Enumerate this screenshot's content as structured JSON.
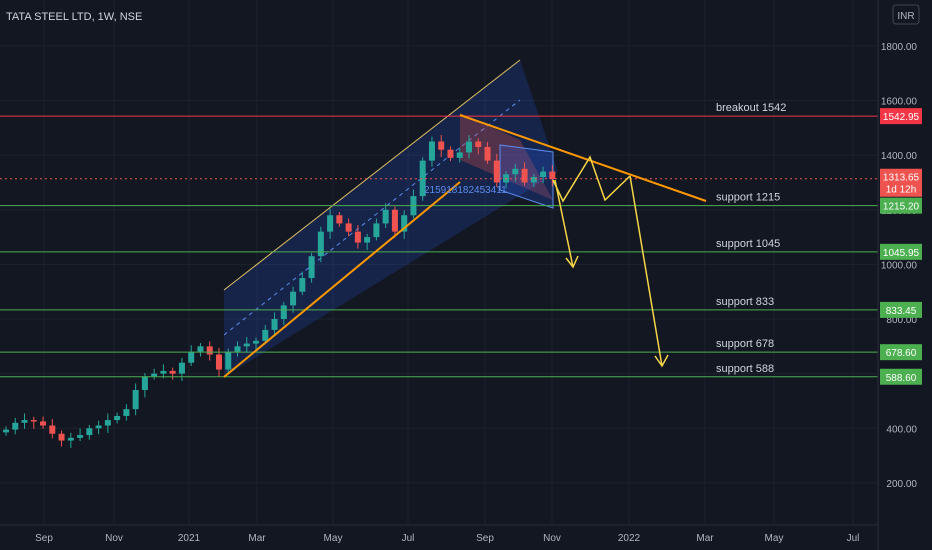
{
  "header": {
    "symbol": "TATA STEEL LTD, 1W, NSE",
    "currency": "INR"
  },
  "colors": {
    "background": "#131722",
    "up": "#26a69a",
    "down": "#ef5350",
    "support": "#4caf50",
    "breakout": "#f23645",
    "trend": "#ff9800",
    "arrow": "#f5d547",
    "channel_fill": "#2962ff"
  },
  "chart_data": {
    "type": "candlestick",
    "interval": "1W",
    "y_axis": {
      "ticks": [
        "200.00",
        "400.00",
        "600.00",
        "800.00",
        "1000.00",
        "1200.00",
        "1400.00",
        "1600.00",
        "1800.00"
      ],
      "range": [
        60,
        1940
      ]
    },
    "x_axis": {
      "ticks": [
        "Sep",
        "Nov",
        "2021",
        "Mar",
        "May",
        "Jul",
        "Sep",
        "Nov",
        "2022",
        "Mar",
        "May",
        "Jul"
      ]
    },
    "levels": [
      {
        "name": "breakout",
        "label": "breakout 1542",
        "price": 1542.95,
        "tag": "1542.95"
      },
      {
        "name": "support-1215",
        "label": "support 1215",
        "price": 1215.2,
        "tag": "1215.20"
      },
      {
        "name": "support-1045",
        "label": "support 1045",
        "price": 1045.95,
        "tag": "1045.95"
      },
      {
        "name": "support-833",
        "label": "support 833",
        "price": 833.45,
        "tag": "833.45"
      },
      {
        "name": "support-678",
        "label": "support 678",
        "price": 678.6,
        "tag": "678.60"
      },
      {
        "name": "support-588",
        "label": "support 588",
        "price": 588.6,
        "tag": "588.60"
      }
    ],
    "last_price": {
      "value": 1313.65,
      "tag": "1313.65",
      "countdown": "1d 12h"
    },
    "channel_label": "215918182453411",
    "closes": [
      395,
      420,
      430,
      425,
      410,
      380,
      355,
      365,
      375,
      400,
      410,
      430,
      445,
      470,
      540,
      590,
      600,
      610,
      600,
      640,
      680,
      700,
      670,
      615,
      680,
      700,
      710,
      720,
      760,
      800,
      850,
      900,
      950,
      1030,
      1120,
      1180,
      1150,
      1120,
      1080,
      1100,
      1150,
      1200,
      1120,
      1180,
      1250,
      1380,
      1450,
      1420,
      1390,
      1410,
      1450,
      1430,
      1380,
      1300,
      1330,
      1350,
      1300,
      1320,
      1340,
      1313
    ]
  }
}
